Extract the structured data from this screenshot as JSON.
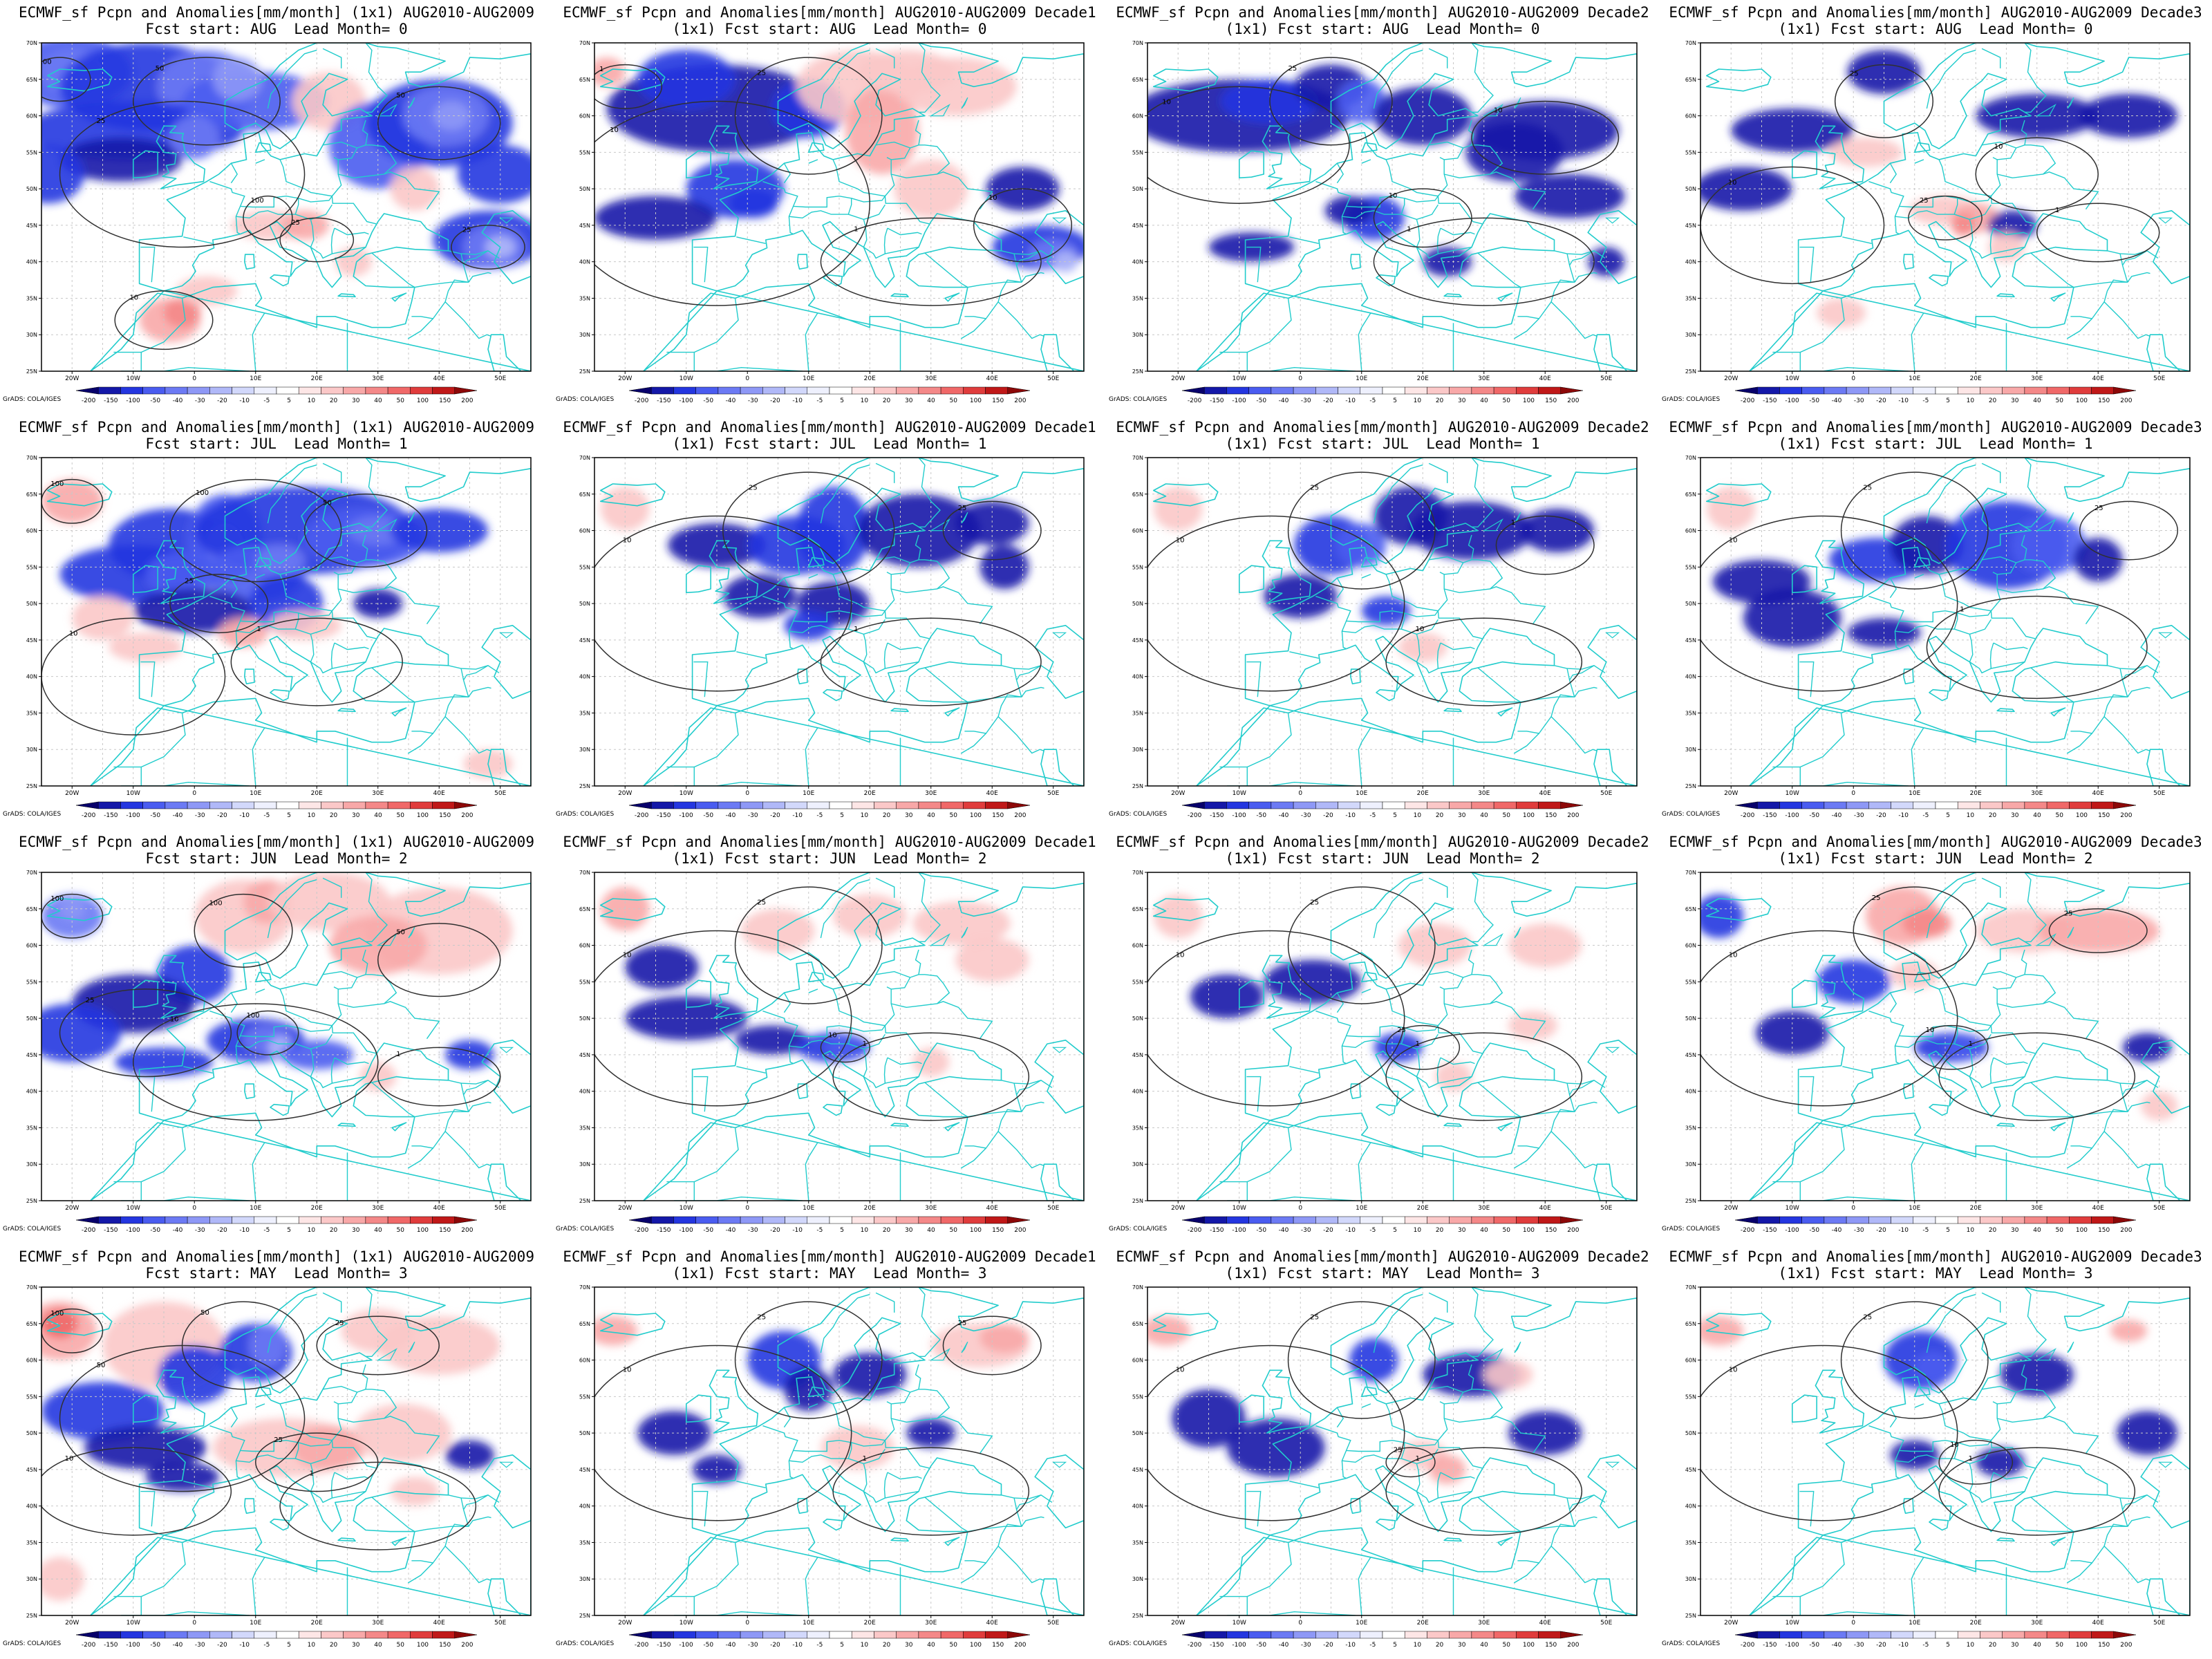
{
  "figure": {
    "product": "ECMWF_sf Pcpn and Anomalies[mm/month]",
    "period": "AUG2010-AUG2009",
    "credit": "GrADS: COLA/IGES",
    "lon_ticks": [
      "20W",
      "10W",
      "0",
      "10E",
      "20E",
      "30E",
      "40E",
      "50E"
    ],
    "lat_ticks": [
      "25N",
      "30N",
      "35N",
      "40N",
      "45N",
      "50N",
      "55N",
      "60N",
      "65N",
      "70N"
    ],
    "colorbar_labels": [
      "-200",
      "-150",
      "-100",
      "-50",
      "-40",
      "-30",
      "-20",
      "-10",
      "-5",
      "5",
      "10",
      "20",
      "30",
      "40",
      "50",
      "100",
      "150",
      "200"
    ],
    "colorbar_colors": [
      "#08006b",
      "#1418a8",
      "#2436e0",
      "#4a5cf0",
      "#6c7af4",
      "#8e98f6",
      "#b0b8f8",
      "#d2d8fb",
      "#eef0fd",
      "#ffffff",
      "#fde6e6",
      "#fbc8c8",
      "#f8a8a8",
      "#f48888",
      "#f06868",
      "#e03c3c",
      "#c01818",
      "#8c0808"
    ],
    "colors": {
      "coast": "#22cccc",
      "contour": "#303030",
      "frame": "#000000"
    },
    "rows": [
      {
        "fcst_start": "AUG",
        "lead": "0"
      },
      {
        "fcst_start": "JUL",
        "lead": "1"
      },
      {
        "fcst_start": "JUN",
        "lead": "2"
      },
      {
        "fcst_start": "MAY",
        "lead": "3"
      }
    ],
    "columns": [
      {
        "suffix": "",
        "monthly": true
      },
      {
        "suffix": "Decade1",
        "monthly": false
      },
      {
        "suffix": "Decade2",
        "monthly": false
      },
      {
        "suffix": "Decade3",
        "monthly": false
      }
    ],
    "panels": [
      {
        "line1": "ECMWF_sf Pcpn and Anomalies[mm/month] (1x1) AUG2010-AUG2009",
        "line2": "Fcst start: AUG  Lead Month= 0"
      },
      {
        "line1": "ECMWF_sf Pcpn and Anomalies[mm/month] AUG2010-AUG2009 Decade1",
        "line2": "(1x1) Fcst start: AUG  Lead Month= 0"
      },
      {
        "line1": "ECMWF_sf Pcpn and Anomalies[mm/month] AUG2010-AUG2009 Decade2",
        "line2": "(1x1) Fcst start: AUG  Lead Month= 0"
      },
      {
        "line1": "ECMWF_sf Pcpn and Anomalies[mm/month] AUG2010-AUG2009 Decade3",
        "line2": "(1x1) Fcst start: AUG  Lead Month= 0"
      },
      {
        "line1": "ECMWF_sf Pcpn and Anomalies[mm/month] (1x1) AUG2010-AUG2009",
        "line2": "Fcst start: JUL  Lead Month= 1"
      },
      {
        "line1": "ECMWF_sf Pcpn and Anomalies[mm/month] AUG2010-AUG2009 Decade1",
        "line2": "(1x1) Fcst start: JUL  Lead Month= 1"
      },
      {
        "line1": "ECMWF_sf Pcpn and Anomalies[mm/month] AUG2010-AUG2009 Decade2",
        "line2": "(1x1) Fcst start: JUL  Lead Month= 1"
      },
      {
        "line1": "ECMWF_sf Pcpn and Anomalies[mm/month] AUG2010-AUG2009 Decade3",
        "line2": "(1x1) Fcst start: JUL  Lead Month= 1"
      },
      {
        "line1": "ECMWF_sf Pcpn and Anomalies[mm/month] (1x1) AUG2010-AUG2009",
        "line2": "Fcst start: JUN  Lead Month= 2"
      },
      {
        "line1": "ECMWF_sf Pcpn and Anomalies[mm/month] AUG2010-AUG2009 Decade1",
        "line2": "(1x1) Fcst start: JUN  Lead Month= 2"
      },
      {
        "line1": "ECMWF_sf Pcpn and Anomalies[mm/month] AUG2010-AUG2009 Decade2",
        "line2": "(1x1) Fcst start: JUN  Lead Month= 2"
      },
      {
        "line1": "ECMWF_sf Pcpn and Anomalies[mm/month] AUG2010-AUG2009 Decade3",
        "line2": "(1x1) Fcst start: JUN  Lead Month= 2"
      },
      {
        "line1": "ECMWF_sf Pcpn and Anomalies[mm/month] (1x1) AUG2010-AUG2009",
        "line2": "Fcst start: MAY  Lead Month= 3"
      },
      {
        "line1": "ECMWF_sf Pcpn and Anomalies[mm/month] AUG2010-AUG2009 Decade1",
        "line2": "(1x1) Fcst start: MAY  Lead Month= 3"
      },
      {
        "line1": "ECMWF_sf Pcpn and Anomalies[mm/month] AUG2010-AUG2009 Decade2",
        "line2": "(1x1) Fcst start: MAY  Lead Month= 3"
      },
      {
        "line1": "ECMWF_sf Pcpn and Anomalies[mm/month] AUG2010-AUG2009 Decade3",
        "line2": "(1x1) Fcst start: MAY  Lead Month= 3"
      }
    ],
    "contour_labels": [
      "100",
      "50",
      "25",
      "10",
      "1"
    ]
  }
}
